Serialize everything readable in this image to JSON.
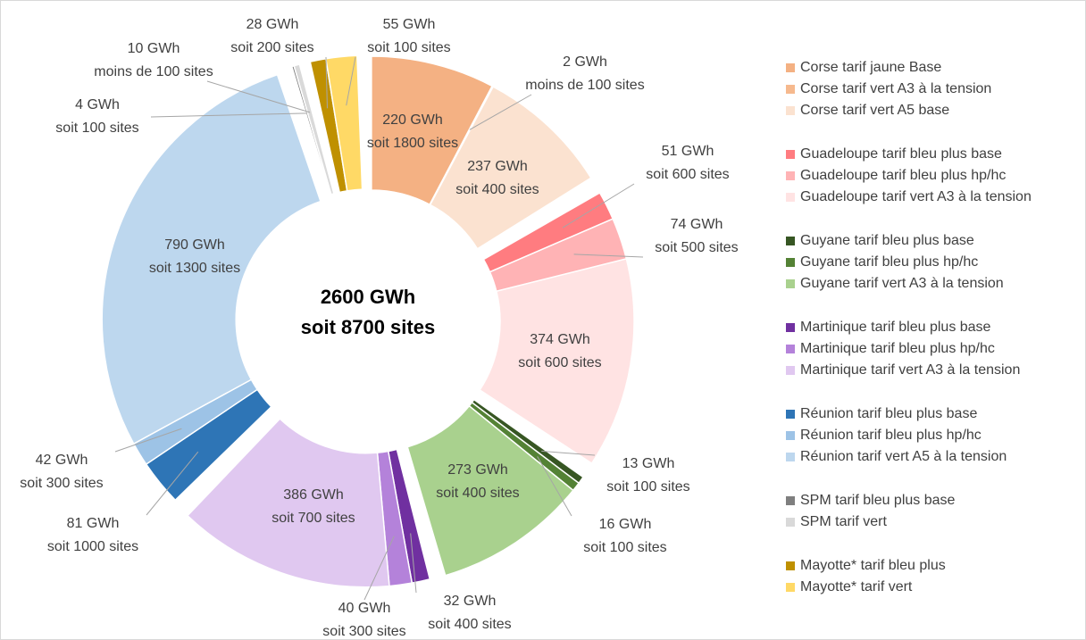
{
  "chart_data": {
    "type": "pie",
    "donut": true,
    "center_label": [
      "2600 GWh",
      "soit 8700 sites"
    ],
    "categories": [
      "Corse tarif jaune Base",
      "Corse tarif vert A3 à la tension",
      "Corse tarif vert A5 base",
      "Guadeloupe tarif bleu plus base",
      "Guadeloupe tarif bleu plus hp/hc",
      "Guadeloupe tarif vert A3 à la tension",
      "Guyane tarif bleu plus base",
      "Guyane tarif bleu plus hp/hc",
      "Guyane tarif vert A3 à la tension",
      "Martinique tarif bleu plus base",
      "Martinique tarif bleu plus hp/hc",
      "Martinique tarif vert A3 à la tension",
      "Réunion tarif bleu plus base",
      "Réunion tarif bleu plus hp/hc",
      "Réunion tarif vert A5 à la tension",
      "SPM tarif bleu plus  base",
      "SPM tarif vert",
      "Mayotte* tarif bleu plus",
      "Mayotte* tarif vert"
    ],
    "values": [
      220,
      2,
      237,
      51,
      74,
      374,
      13,
      16,
      273,
      32,
      40,
      386,
      81,
      42,
      790,
      4,
      10,
      28,
      55
    ],
    "value_labels": [
      "220 GWh",
      "2 GWh",
      "237 GWh",
      "51 GWh",
      "74 GWh",
      "374 GWh",
      "13 GWh",
      "16 GWh",
      "273 GWh",
      "32 GWh",
      "40 GWh",
      "386 GWh",
      "81 GWh",
      "42 GWh",
      "790 GWh",
      "4 GWh",
      "10 GWh",
      "28 GWh",
      "55 GWh"
    ],
    "site_labels": [
      "soit 1800 sites",
      "moins de 100 sites",
      "soit 400 sites",
      "soit 600 sites",
      "soit 500 sites",
      "soit 600 sites",
      "soit 100 sites",
      "soit 100 sites",
      "soit 400 sites",
      "soit 400 sites",
      "soit 300 sites",
      "soit 700 sites",
      "soit 1000 sites",
      "soit 300 sites",
      "soit 1300 sites",
      "soit 100 sites",
      "moins de 100 sites",
      "soit 200 sites",
      "soit 100 sites"
    ],
    "colors": [
      "#f4b183",
      "#f6b98e",
      "#fbe2d0",
      "#ff7c80",
      "#ffb3b5",
      "#ffe3e3",
      "#375623",
      "#548235",
      "#a9d18e",
      "#7030a0",
      "#b482da",
      "#e0c8f0",
      "#2e75b6",
      "#9dc3e6",
      "#bdd7ee",
      "#7f7f7f",
      "#d9d9d9",
      "#bf9000",
      "#ffd966"
    ],
    "legend": "right"
  }
}
